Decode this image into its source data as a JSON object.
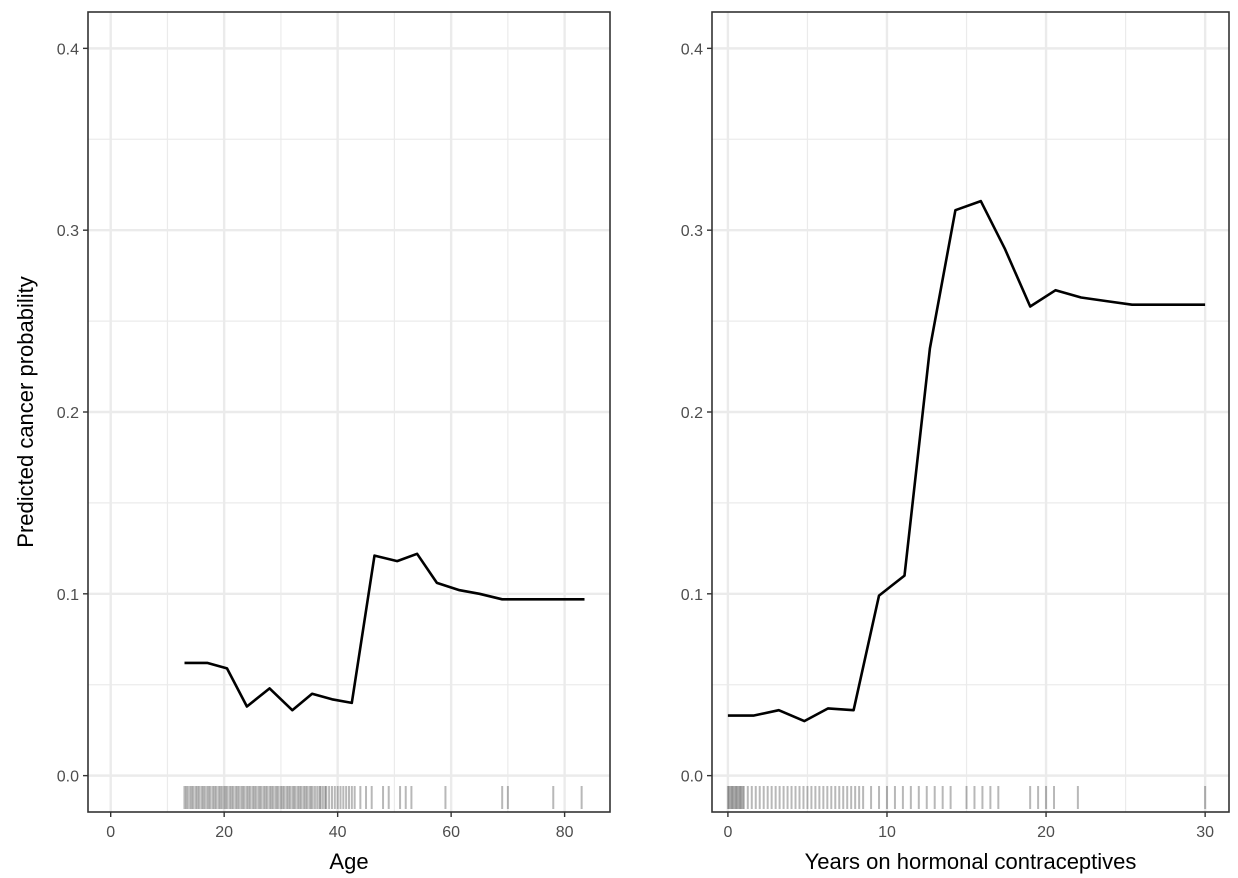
{
  "chart_data": [
    {
      "type": "line",
      "xlabel": "Age",
      "ylabel": "Predicted cancer probability",
      "xlim": [
        -4,
        88
      ],
      "ylim": [
        -0.02,
        0.42
      ],
      "x_ticks": [
        0,
        20,
        40,
        60,
        80
      ],
      "y_ticks": [
        0.0,
        0.1,
        0.2,
        0.3,
        0.4
      ],
      "y_tick_labels": [
        "0.0",
        "0.1",
        "0.2",
        "0.3",
        "0.4"
      ],
      "grid": true,
      "line_color": "#000000",
      "series": [
        {
          "x": [
            13,
            17,
            20.5,
            24,
            28,
            32,
            35.5,
            39,
            42.5,
            46.5,
            50.5,
            54,
            57.5,
            61.5,
            65,
            69,
            72.5,
            76.5,
            80,
            83.5
          ],
          "y": [
            0.062,
            0.062,
            0.059,
            0.038,
            0.048,
            0.036,
            0.045,
            0.042,
            0.04,
            0.121,
            0.118,
            0.122,
            0.106,
            0.102,
            0.1,
            0.097,
            0.097,
            0.097,
            0.097,
            0.097
          ]
        }
      ],
      "rug": [
        13,
        13.3,
        13.6,
        14,
        14.3,
        14.6,
        15,
        15.3,
        15.6,
        16,
        16.3,
        16.6,
        17,
        17.3,
        17.6,
        18,
        18.3,
        18.6,
        19,
        19.3,
        19.6,
        20,
        20.3,
        20.6,
        21,
        21.3,
        21.6,
        22,
        22.3,
        22.6,
        23,
        23.3,
        23.6,
        24,
        24.3,
        24.6,
        25,
        25.3,
        25.6,
        26,
        26.3,
        26.6,
        27,
        27.3,
        27.6,
        28,
        28.3,
        28.6,
        29,
        29.3,
        29.6,
        30,
        30.3,
        30.6,
        31,
        31.3,
        31.6,
        32,
        32.3,
        32.6,
        33,
        33.3,
        33.6,
        34,
        34.3,
        34.6,
        35,
        35.3,
        35.6,
        36,
        36.4,
        36.8,
        37,
        37.4,
        37.8,
        38,
        38.5,
        39,
        39.5,
        40,
        40.5,
        41,
        41.5,
        42,
        42.5,
        43,
        44,
        45,
        46,
        48,
        49,
        51,
        52,
        53,
        59,
        69,
        70,
        78,
        83
      ]
    },
    {
      "type": "line",
      "xlabel": "Years on hormonal contraceptives",
      "ylabel": "",
      "xlim": [
        -1,
        31.5
      ],
      "ylim": [
        -0.02,
        0.42
      ],
      "x_ticks": [
        0,
        10,
        20,
        30
      ],
      "y_ticks": [
        0.0,
        0.1,
        0.2,
        0.3,
        0.4
      ],
      "y_tick_labels": [
        "0.0",
        "0.1",
        "0.2",
        "0.3",
        "0.4"
      ],
      "grid": true,
      "line_color": "#000000",
      "series": [
        {
          "x": [
            0,
            1.6,
            3.2,
            4.8,
            6.3,
            7.9,
            9.5,
            11.1,
            12.7,
            14.3,
            15.9,
            17.4,
            19,
            20.6,
            22.2,
            23.8,
            25.4,
            27,
            28.5,
            30
          ],
          "y": [
            0.033,
            0.033,
            0.036,
            0.03,
            0.037,
            0.036,
            0.099,
            0.11,
            0.235,
            0.311,
            0.316,
            0.29,
            0.258,
            0.267,
            0.263,
            0.261,
            0.259,
            0.259,
            0.259,
            0.259
          ]
        }
      ],
      "rug": [
        0,
        0.08,
        0.17,
        0.25,
        0.33,
        0.42,
        0.5,
        0.58,
        0.67,
        0.75,
        0.83,
        0.92,
        1,
        1.25,
        1.5,
        1.75,
        2,
        2.25,
        2.5,
        2.75,
        3,
        3.25,
        3.5,
        3.75,
        4,
        4.25,
        4.5,
        4.75,
        5,
        5.25,
        5.5,
        5.75,
        6,
        6.25,
        6.5,
        6.75,
        7,
        7.25,
        7.5,
        7.75,
        8,
        8.25,
        8.5,
        9,
        9.5,
        10,
        10.5,
        11,
        11.5,
        12,
        12.5,
        13,
        13.5,
        14,
        15,
        15.5,
        16,
        16.5,
        17,
        19,
        19.5,
        20,
        20.5,
        22,
        30
      ]
    }
  ]
}
